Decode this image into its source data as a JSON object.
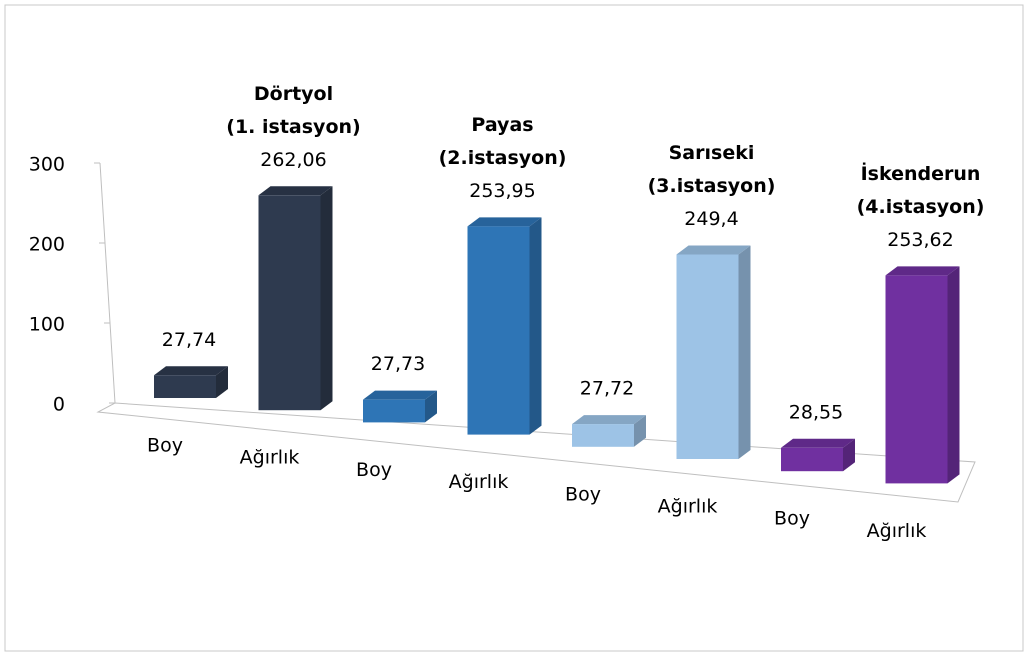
{
  "chart_data": {
    "type": "bar3d",
    "categories": [
      "Boy",
      "Ağırlık",
      "Boy",
      "Ağırlık",
      "Boy",
      "Ağırlık",
      "Boy",
      "Ağırlık"
    ],
    "values": [
      27.74,
      262.06,
      27.73,
      253.95,
      27.72,
      249.4,
      28.55,
      253.62
    ],
    "value_labels": [
      "27,74",
      "262,06",
      "27,73",
      "253,95",
      "27,72",
      "249,4",
      "28,55",
      "253,62"
    ],
    "colors": [
      "#2e3a4f",
      "#2e3a4f",
      "#2e75b6",
      "#2e75b6",
      "#9dc3e6",
      "#9dc3e6",
      "#7030a0",
      "#7030a0"
    ],
    "groups": [
      [
        "Dörtyol",
        "(1. istasyon)"
      ],
      [
        "Payas",
        "(2.istasyon)"
      ],
      [
        "Sarıseki",
        "(3.istasyon)"
      ],
      [
        "İskenderun",
        "(4.istasyon)"
      ]
    ],
    "ylim": [
      0,
      300
    ],
    "yticks": [
      0,
      100,
      200,
      300
    ]
  }
}
